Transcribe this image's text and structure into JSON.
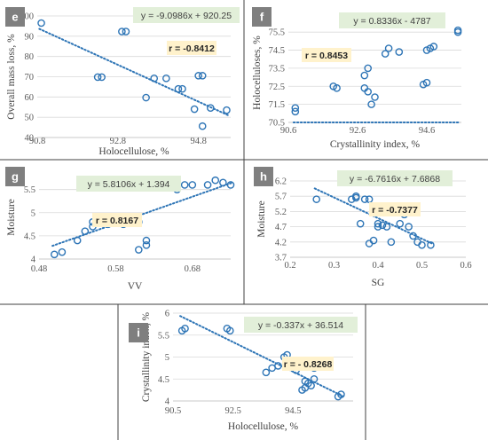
{
  "colors": {
    "marker": "#2e75b6",
    "trend": "#2e75b6",
    "label_bg": "#7f7f7f",
    "eq_bg": "#e2efd9",
    "r_bg": "#fff2cc",
    "grid": "#d9d9d9",
    "divider": "#404040"
  },
  "chart_data": [
    {
      "id": "e",
      "type": "scatter",
      "panel_label": "e",
      "xlabel": "Holocellulose, %",
      "ylabel": "Overall mass loss, %",
      "xlim": [
        90.8,
        95.6
      ],
      "ylim": [
        40,
        100
      ],
      "xticks": [
        "90.8",
        "92.8",
        "94.8"
      ],
      "yticks": [
        "40",
        "50",
        "60",
        "70",
        "80",
        "90",
        "100"
      ],
      "equation": "y = -9.0986x + 920.25",
      "r_label": "r = -0.8412",
      "trend": {
        "slope": -9.0986,
        "intercept": 920.25
      },
      "points": [
        [
          90.9,
          96.5
        ],
        [
          92.3,
          69.8
        ],
        [
          92.4,
          69.8
        ],
        [
          92.9,
          92.3
        ],
        [
          93.0,
          92.3
        ],
        [
          93.5,
          59.7
        ],
        [
          93.7,
          69.2
        ],
        [
          94.0,
          69.2
        ],
        [
          94.3,
          64.0
        ],
        [
          94.4,
          64.0
        ],
        [
          94.7,
          54.0
        ],
        [
          94.8,
          70.5
        ],
        [
          94.9,
          70.5
        ],
        [
          95.1,
          54.6
        ],
        [
          94.9,
          45.6
        ],
        [
          95.5,
          53.5
        ]
      ]
    },
    {
      "id": "f",
      "type": "scatter",
      "panel_label": "f",
      "xlabel": "Crystallinity index, %",
      "ylabel": "Holocelluloses, %",
      "xlim": [
        90.6,
        95.6
      ],
      "ylim": [
        70.5,
        76
      ],
      "xticks": [
        "90.6",
        "92.6",
        "94.6"
      ],
      "yticks": [
        "70.5",
        "71.5",
        "72.5",
        "73.5",
        "74.5",
        "75.5"
      ],
      "equation": "y = 0.8336x - 4787",
      "r_label": "r = 0.8453",
      "trend": {
        "slope": 0.8336,
        "intercept": -4787
      },
      "points": [
        [
          90.8,
          71.1
        ],
        [
          90.8,
          71.3
        ],
        [
          91.9,
          72.5
        ],
        [
          92.0,
          72.4
        ],
        [
          92.8,
          73.1
        ],
        [
          92.8,
          72.4
        ],
        [
          92.9,
          72.2
        ],
        [
          92.9,
          73.5
        ],
        [
          93.0,
          71.5
        ],
        [
          93.1,
          71.9
        ],
        [
          93.4,
          74.3
        ],
        [
          93.5,
          74.6
        ],
        [
          93.8,
          74.4
        ],
        [
          94.5,
          72.6
        ],
        [
          94.6,
          72.7
        ],
        [
          94.6,
          74.5
        ],
        [
          94.7,
          74.6
        ],
        [
          94.8,
          74.7
        ],
        [
          95.5,
          75.5
        ],
        [
          95.5,
          75.6
        ]
      ]
    },
    {
      "id": "g",
      "type": "scatter",
      "panel_label": "g",
      "xlabel": "VV",
      "ylabel": "Moisture",
      "xlim": [
        0.48,
        0.73
      ],
      "ylim": [
        4,
        5.8
      ],
      "xticks": [
        "0.48",
        "0.58",
        "0.68"
      ],
      "yticks": [
        "4",
        "4.5",
        "5",
        "5.5"
      ],
      "equation": "y = 5.8106x + 1.394",
      "r_label": "r = 0.8167",
      "trend": {
        "slope": 5.8106,
        "intercept": 1.394
      },
      "points": [
        [
          0.5,
          4.1
        ],
        [
          0.51,
          4.15
        ],
        [
          0.53,
          4.4
        ],
        [
          0.54,
          4.6
        ],
        [
          0.55,
          4.7
        ],
        [
          0.55,
          4.8
        ],
        [
          0.57,
          4.75
        ],
        [
          0.59,
          4.75
        ],
        [
          0.6,
          4.8
        ],
        [
          0.61,
          4.8
        ],
        [
          0.61,
          4.2
        ],
        [
          0.62,
          4.3
        ],
        [
          0.62,
          4.4
        ],
        [
          0.66,
          5.5
        ],
        [
          0.67,
          5.6
        ],
        [
          0.68,
          5.6
        ],
        [
          0.7,
          5.6
        ],
        [
          0.71,
          5.7
        ],
        [
          0.72,
          5.65
        ],
        [
          0.73,
          5.6
        ]
      ]
    },
    {
      "id": "h",
      "type": "scatter",
      "panel_label": "h",
      "xlabel": "SG",
      "ylabel": "Moisture",
      "xlim": [
        0.2,
        0.6
      ],
      "ylim": [
        3.7,
        6.2
      ],
      "xticks": [
        "0.2",
        "0.3",
        "0.4",
        "0.5",
        "0.6"
      ],
      "yticks": [
        "3.7",
        "4.2",
        "4.7",
        "5.2",
        "5.7",
        "6.2"
      ],
      "equation": "y = -6.7616x + 7.6868",
      "r_label": "r = -0.7377",
      "trend": {
        "slope": -6.7616,
        "intercept": 7.6868
      },
      "points": [
        [
          0.26,
          5.6
        ],
        [
          0.34,
          5.6
        ],
        [
          0.35,
          5.65
        ],
        [
          0.35,
          5.7
        ],
        [
          0.36,
          4.8
        ],
        [
          0.37,
          5.6
        ],
        [
          0.38,
          5.6
        ],
        [
          0.38,
          4.15
        ],
        [
          0.39,
          4.25
        ],
        [
          0.4,
          4.7
        ],
        [
          0.4,
          4.8
        ],
        [
          0.41,
          4.75
        ],
        [
          0.42,
          4.7
        ],
        [
          0.43,
          5.2
        ],
        [
          0.43,
          4.2
        ],
        [
          0.45,
          4.8
        ],
        [
          0.46,
          5.1
        ],
        [
          0.46,
          5.2
        ],
        [
          0.47,
          4.7
        ],
        [
          0.48,
          4.4
        ],
        [
          0.49,
          4.2
        ],
        [
          0.5,
          4.1
        ],
        [
          0.52,
          4.1
        ]
      ]
    },
    {
      "id": "i",
      "type": "scatter",
      "panel_label": "i",
      "xlabel": "Holocellulose, %",
      "ylabel": "Crystallinity index, %",
      "xlim": [
        90.5,
        96.5
      ],
      "ylim": [
        4,
        6
      ],
      "xticks": [
        "90.5",
        "92.5",
        "94.5"
      ],
      "yticks": [
        "4",
        "4.5",
        "5",
        "5.5",
        "6"
      ],
      "equation": "y = -0.337x + 36.514",
      "r_label": "r = - 0.8268",
      "trend": {
        "slope": -0.337,
        "intercept": 36.514
      },
      "points": [
        [
          90.8,
          5.6
        ],
        [
          90.9,
          5.65
        ],
        [
          92.3,
          5.65
        ],
        [
          92.4,
          5.6
        ],
        [
          93.6,
          4.65
        ],
        [
          93.8,
          4.75
        ],
        [
          94.0,
          4.8
        ],
        [
          94.2,
          5.0
        ],
        [
          94.3,
          5.05
        ],
        [
          94.6,
          4.7
        ],
        [
          94.8,
          4.25
        ],
        [
          94.9,
          4.3
        ],
        [
          94.9,
          4.45
        ],
        [
          95.0,
          4.4
        ],
        [
          95.1,
          4.35
        ],
        [
          95.2,
          4.5
        ],
        [
          95.2,
          4.75
        ],
        [
          96.0,
          4.1
        ],
        [
          96.1,
          4.15
        ]
      ]
    }
  ]
}
